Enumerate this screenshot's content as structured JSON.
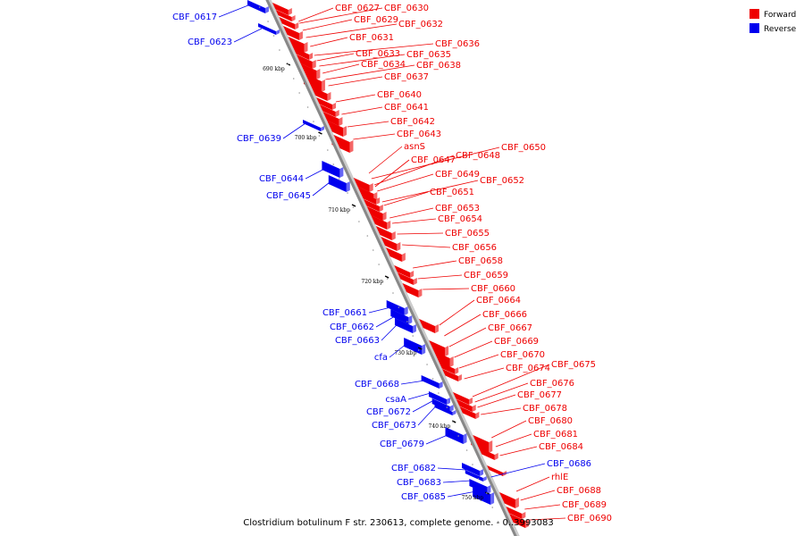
{
  "caption": "Clostridium botulinum F str. 230613, complete genome. - 0..3993083",
  "colors": {
    "forward": "#ee0000",
    "reverse": "#0000ee",
    "axis": "#888888"
  },
  "legend": [
    {
      "label": "Forward",
      "strand": "forward"
    },
    {
      "label": "Reverse",
      "strand": "reverse"
    }
  ],
  "ticks": [
    "690 kbp",
    "700 kbp",
    "710 kbp",
    "720 kbp",
    "730 kbp",
    "740 kbp",
    "750 kbp"
  ],
  "forward_genes": [
    "CBF_0627",
    "CBF_0630",
    "CBF_0629",
    "CBF_0632",
    "CBF_0631",
    "CBF_0636",
    "CBF_0633",
    "CBF_0635",
    "CBF_0634",
    "CBF_0638",
    "CBF_0637",
    "CBF_0640",
    "CBF_0641",
    "CBF_0642",
    "CBF_0643",
    "asnS",
    "CBF_0650",
    "CBF_0648",
    "CBF_0647",
    "CBF_0649",
    "CBF_0652",
    "CBF_0651",
    "CBF_0653",
    "CBF_0654",
    "CBF_0655",
    "CBF_0656",
    "CBF_0658",
    "CBF_0659",
    "CBF_0660",
    "CBF_0664",
    "CBF_0666",
    "CBF_0667",
    "CBF_0669",
    "CBF_0670",
    "CBF_0675",
    "CBF_0674",
    "CBF_0676",
    "CBF_0677",
    "CBF_0678",
    "CBF_0680",
    "CBF_0681",
    "CBF_0684",
    "rhlE",
    "CBF_0688",
    "CBF_0689",
    "CBF_0690"
  ],
  "reverse_genes": [
    "CBF_0617",
    "CBF_0623",
    "CBF_0639",
    "CBF_0644",
    "CBF_0645",
    "CBF_0661",
    "CBF_0662",
    "CBF_0663",
    "cfa",
    "CBF_0668",
    "csaA",
    "CBF_0672",
    "CBF_0673",
    "CBF_0679",
    "CBF_0682",
    "CBF_0683",
    "CBF_0685",
    "CBF_0686"
  ]
}
